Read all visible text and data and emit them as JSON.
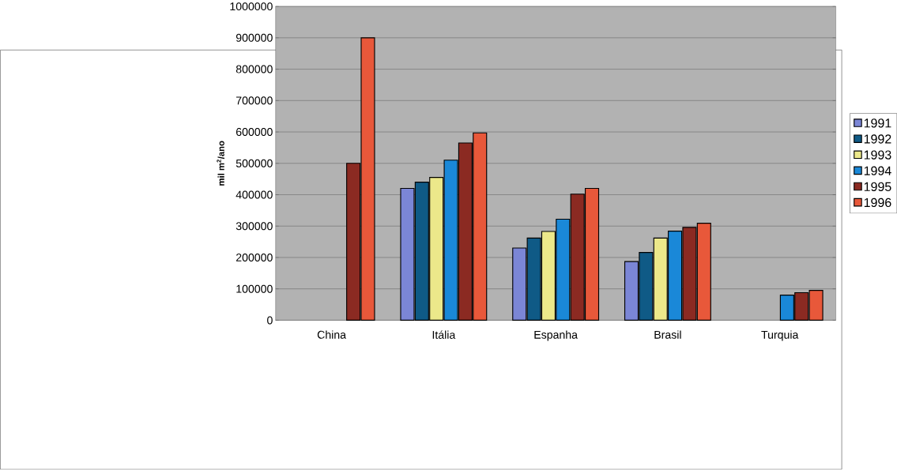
{
  "chart_data": {
    "type": "bar",
    "ylabel": "mil m$^{2}$/ano",
    "categories": [
      "China",
      "Itália",
      "Espanha",
      "Brasil",
      "Turquia"
    ],
    "series": [
      {
        "name": "1991",
        "color": "#7b86d6",
        "values": [
          null,
          420000,
          230000,
          187000,
          null
        ]
      },
      {
        "name": "1992",
        "color": "#0f5a86",
        "values": [
          null,
          440000,
          262000,
          216000,
          null
        ]
      },
      {
        "name": "1993",
        "color": "#ece88a",
        "values": [
          null,
          455000,
          283000,
          262000,
          null
        ]
      },
      {
        "name": "1994",
        "color": "#1a88d8",
        "values": [
          null,
          510000,
          322000,
          284000,
          80000
        ]
      },
      {
        "name": "1995",
        "color": "#8b2a22",
        "values": [
          500000,
          565000,
          402000,
          296000,
          88000
        ]
      },
      {
        "name": "1996",
        "color": "#e8583a",
        "values": [
          900000,
          597000,
          420000,
          309000,
          95000
        ]
      }
    ],
    "ylim": [
      0,
      1000000
    ],
    "yticks": [
      0,
      100000,
      200000,
      300000,
      400000,
      500000,
      600000,
      700000,
      800000,
      900000,
      1000000
    ],
    "grid": "y",
    "legend": "right"
  }
}
